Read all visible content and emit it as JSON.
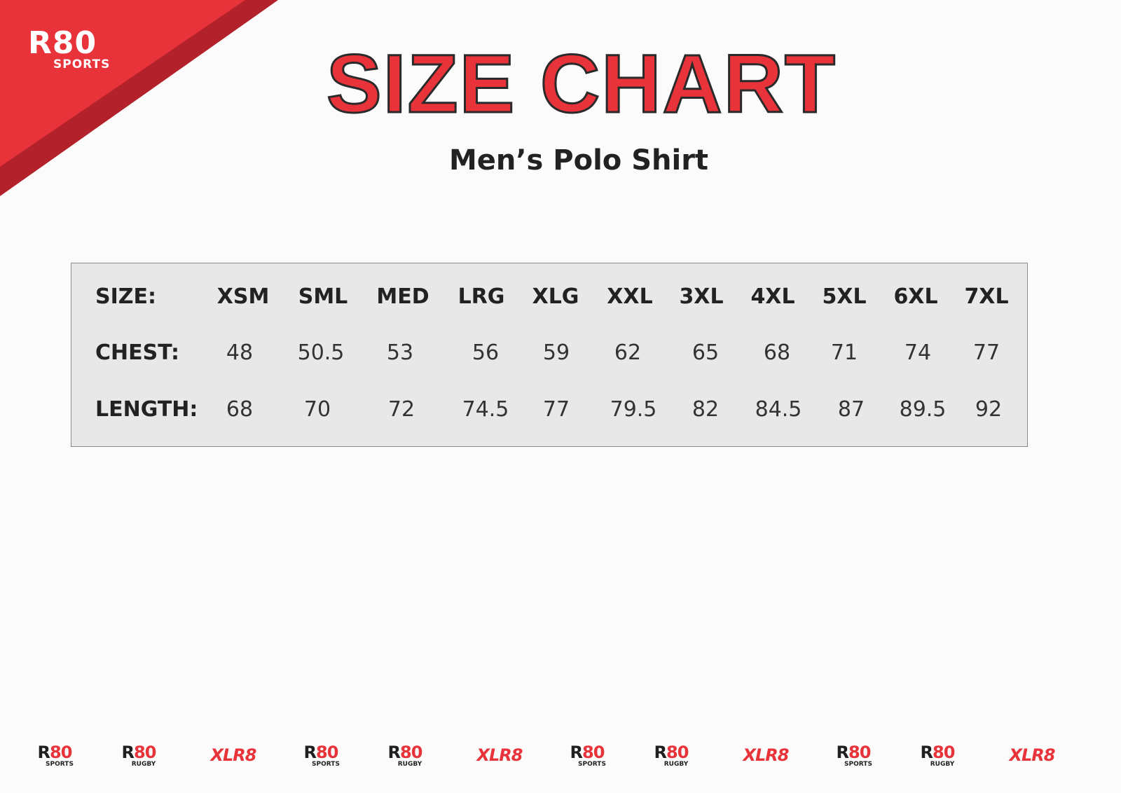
{
  "brand": {
    "logo_main": "R80",
    "logo_sub": "SPORTS",
    "colors": {
      "red": "#e8333a",
      "dark_red": "#b3212a"
    }
  },
  "title": "SIZE CHART",
  "subtitle": "Men’s Polo Shirt",
  "table": {
    "row_labels": [
      "SIZE:",
      "CHEST:",
      "LENGTH:"
    ],
    "sizes": [
      "XSM",
      "SML",
      "MED",
      "LRG",
      "XLG",
      "XXL",
      "3XL",
      "4XL",
      "5XL",
      "6XL",
      "7XL"
    ],
    "chest": [
      "48",
      "50.5",
      "53",
      "56",
      "59",
      "62",
      "65",
      "68",
      "71",
      "74",
      "77"
    ],
    "length": [
      "68",
      "70",
      "72",
      "74.5",
      "77",
      "79.5",
      "82",
      "84.5",
      "87",
      "89.5",
      "92"
    ]
  },
  "footer_logos": [
    {
      "main": "R80",
      "sub": "SPORTS"
    },
    {
      "main": "R80",
      "sub": "RUGBY"
    },
    {
      "main": "XLR8",
      "sub": ""
    },
    {
      "main": "R80",
      "sub": "SPORTS"
    },
    {
      "main": "R80",
      "sub": "RUGBY"
    },
    {
      "main": "XLR8",
      "sub": ""
    },
    {
      "main": "R80",
      "sub": "SPORTS"
    },
    {
      "main": "R80",
      "sub": "RUGBY"
    },
    {
      "main": "XLR8",
      "sub": ""
    },
    {
      "main": "R80",
      "sub": "SPORTS"
    },
    {
      "main": "R80",
      "sub": "RUGBY"
    },
    {
      "main": "XLR8",
      "sub": ""
    }
  ]
}
